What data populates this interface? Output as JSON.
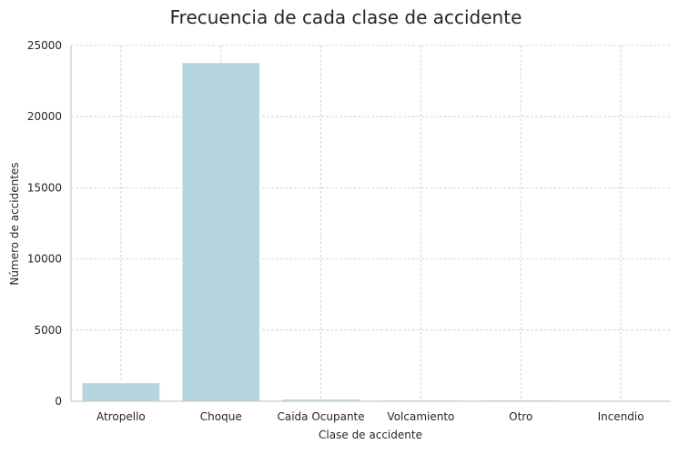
{
  "chart_data": {
    "type": "bar",
    "title": "Frecuencia de cada clase de accidente",
    "xlabel": "Clase de accidente",
    "ylabel": "Número de accidentes",
    "categories": [
      "Atropello",
      "Choque",
      "Caida Ocupante",
      "Volcamiento",
      "Otro",
      "Incendio"
    ],
    "values": [
      1300,
      23800,
      150,
      80,
      90,
      20
    ],
    "ylim": [
      0,
      25000
    ],
    "yticks": [
      0,
      5000,
      10000,
      15000,
      20000,
      25000
    ],
    "grid": true,
    "bar_color": "#b5d6e0"
  }
}
